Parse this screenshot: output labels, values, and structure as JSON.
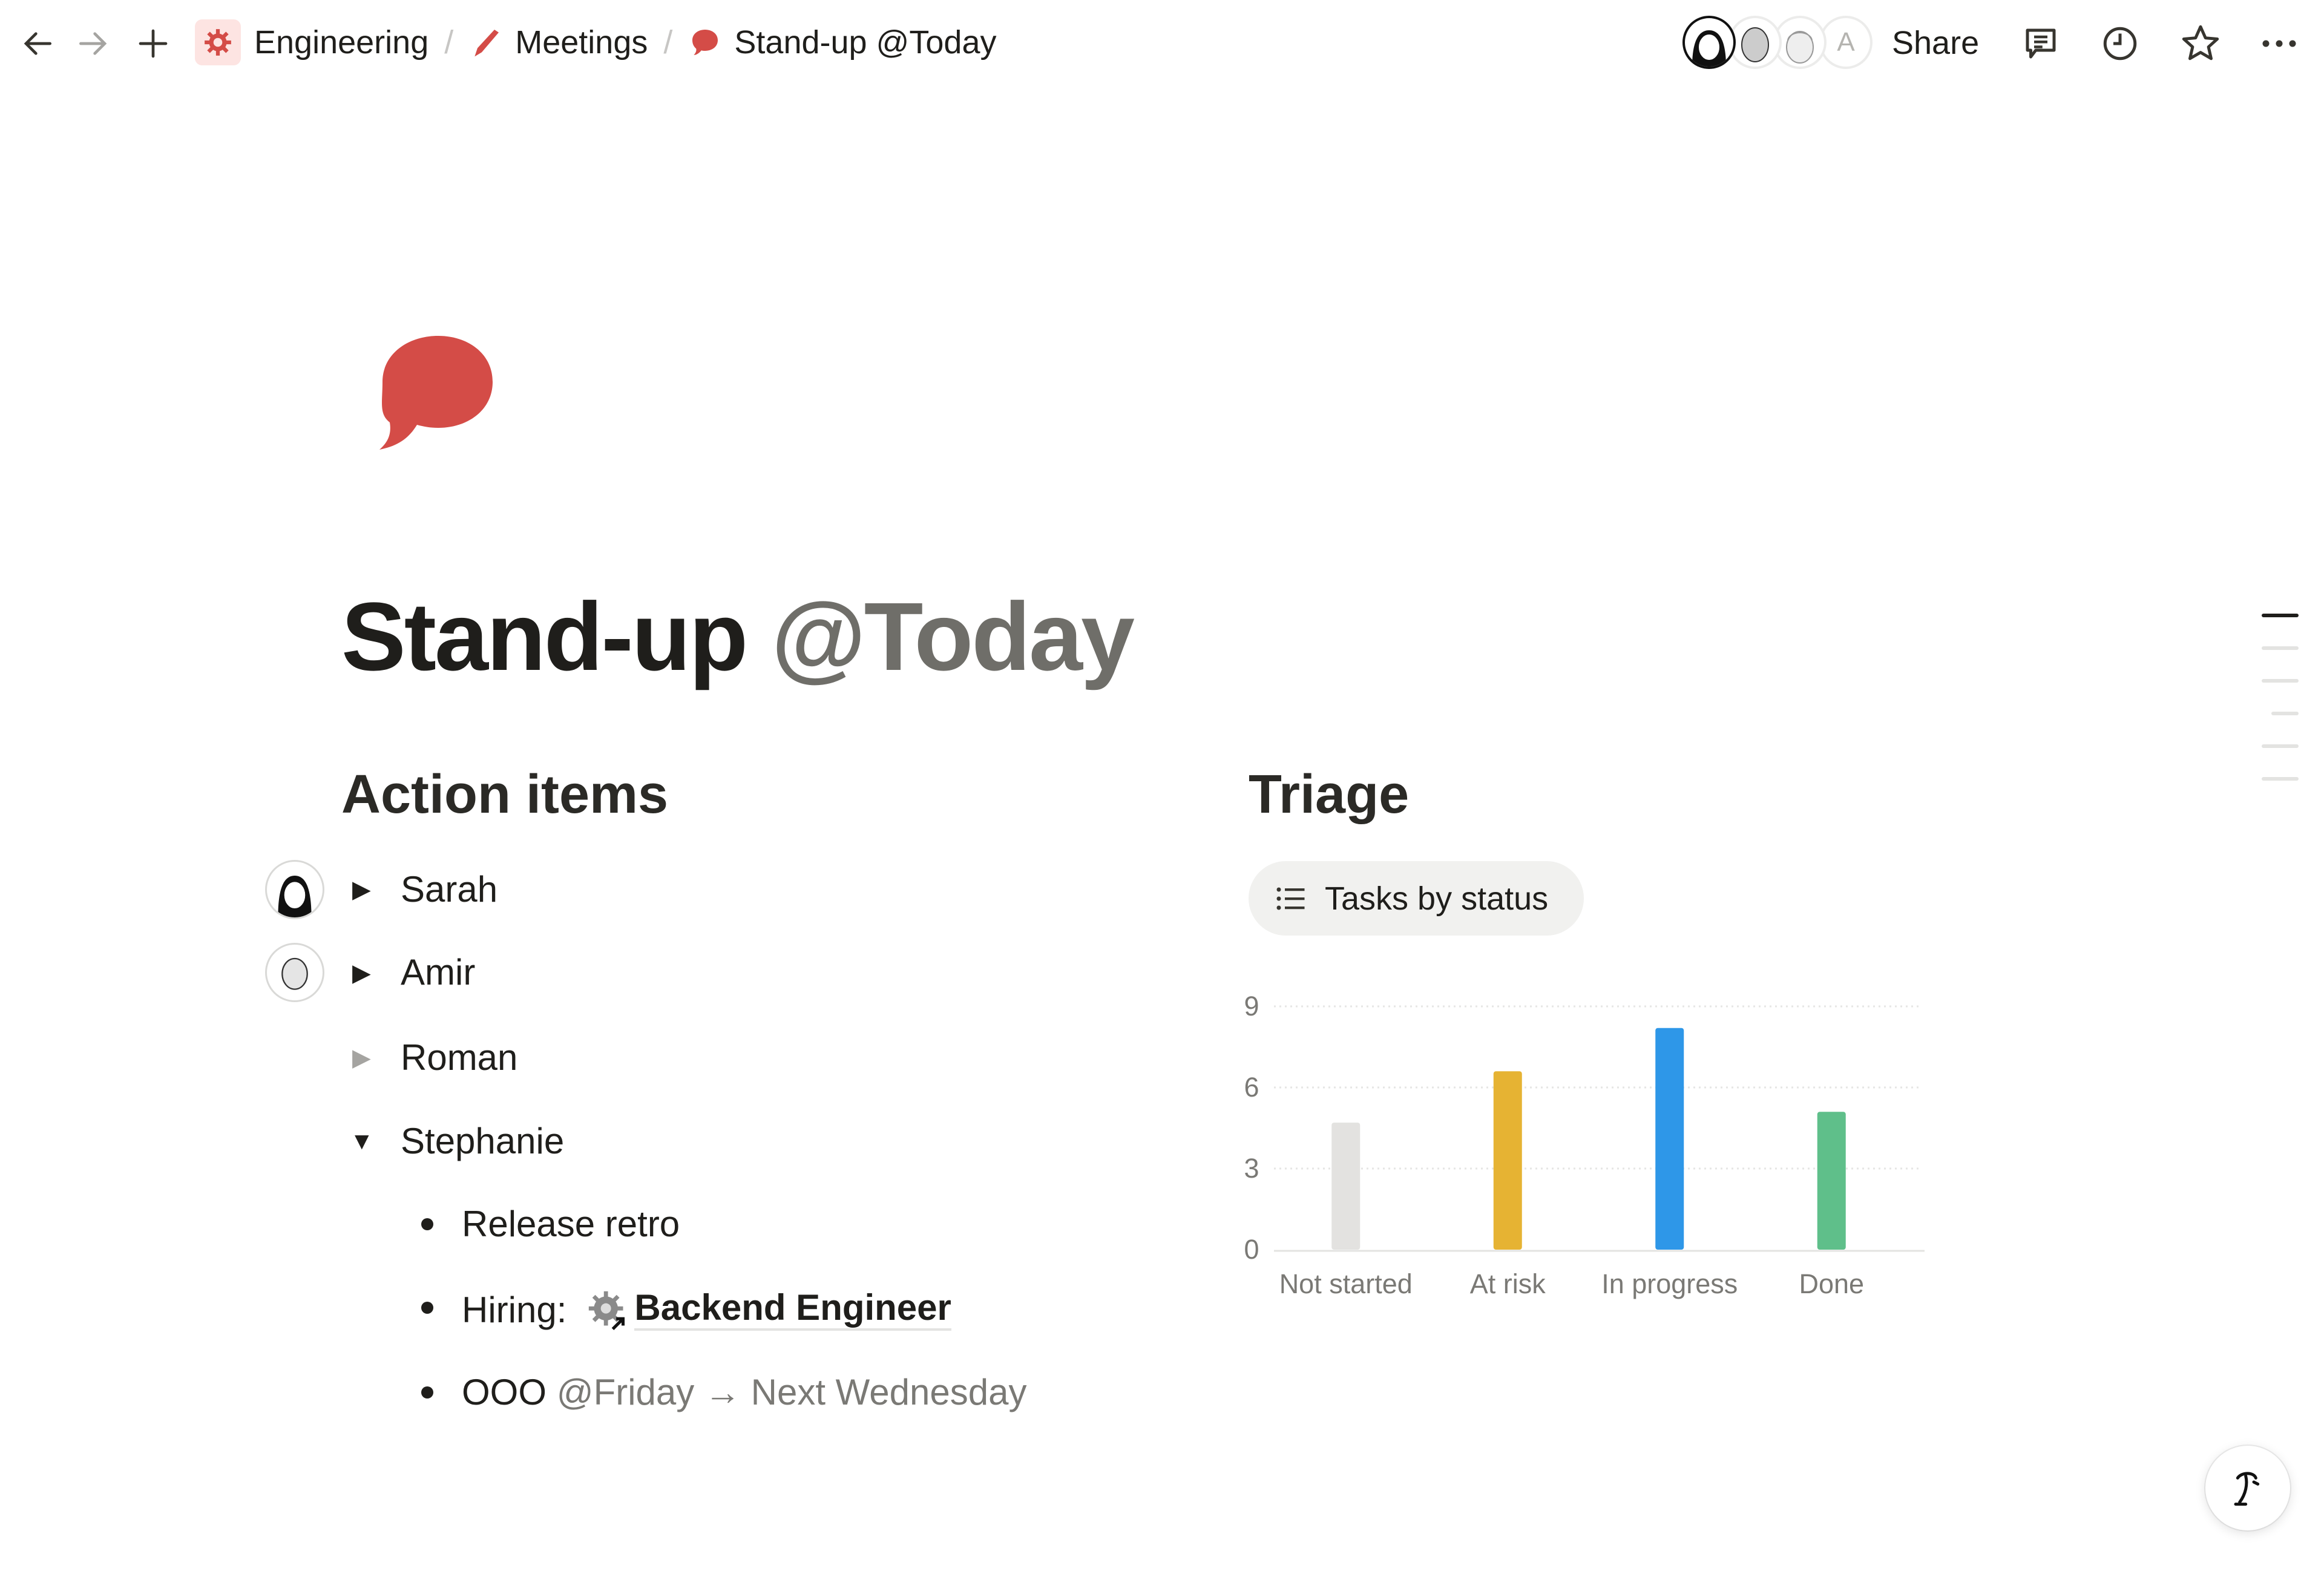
{
  "topbar": {
    "breadcrumbs": [
      {
        "label": "Engineering",
        "icon": "gear-icon"
      },
      {
        "label": "Meetings",
        "icon": "pencil-icon"
      },
      {
        "label": "Stand-up @Today",
        "icon": "speech-bubble-icon"
      }
    ],
    "separator": "/",
    "collaborator_initial": "A",
    "share_label": "Share"
  },
  "page": {
    "icon": "speech-bubble-icon",
    "icon_color": "#d44c47",
    "title_main": "Stand-up",
    "title_mention": "@Today"
  },
  "action_items": {
    "heading": "Action items",
    "people": [
      {
        "name": "Sarah",
        "expanded": false
      },
      {
        "name": "Amir",
        "expanded": false
      },
      {
        "name": "Roman",
        "expanded": false
      },
      {
        "name": "Stephanie",
        "expanded": true
      }
    ],
    "stephanie_items": {
      "retro": "Release retro",
      "hiring_label": "Hiring:",
      "hiring_link": "Backend Engineer",
      "ooo_label": "OOO",
      "ooo_start": "@Friday",
      "ooo_arrow": "→",
      "ooo_end": "Next Wednesday"
    }
  },
  "triage": {
    "heading": "Triage",
    "view_label": "Tasks by status",
    "view_icon": "list-icon"
  },
  "chart_data": {
    "type": "bar",
    "categories": [
      "Not started",
      "At risk",
      "In progress",
      "Done"
    ],
    "values": [
      4.7,
      6.6,
      8.2,
      5.1
    ],
    "colors": [
      "#e3e2e0",
      "#e6b333",
      "#2e97e8",
      "#5fbf8a"
    ],
    "yticks": [
      "0",
      "3",
      "6",
      "9"
    ],
    "ylim": [
      0,
      9
    ],
    "grid": true,
    "title": "",
    "xlabel": "",
    "ylabel": ""
  }
}
